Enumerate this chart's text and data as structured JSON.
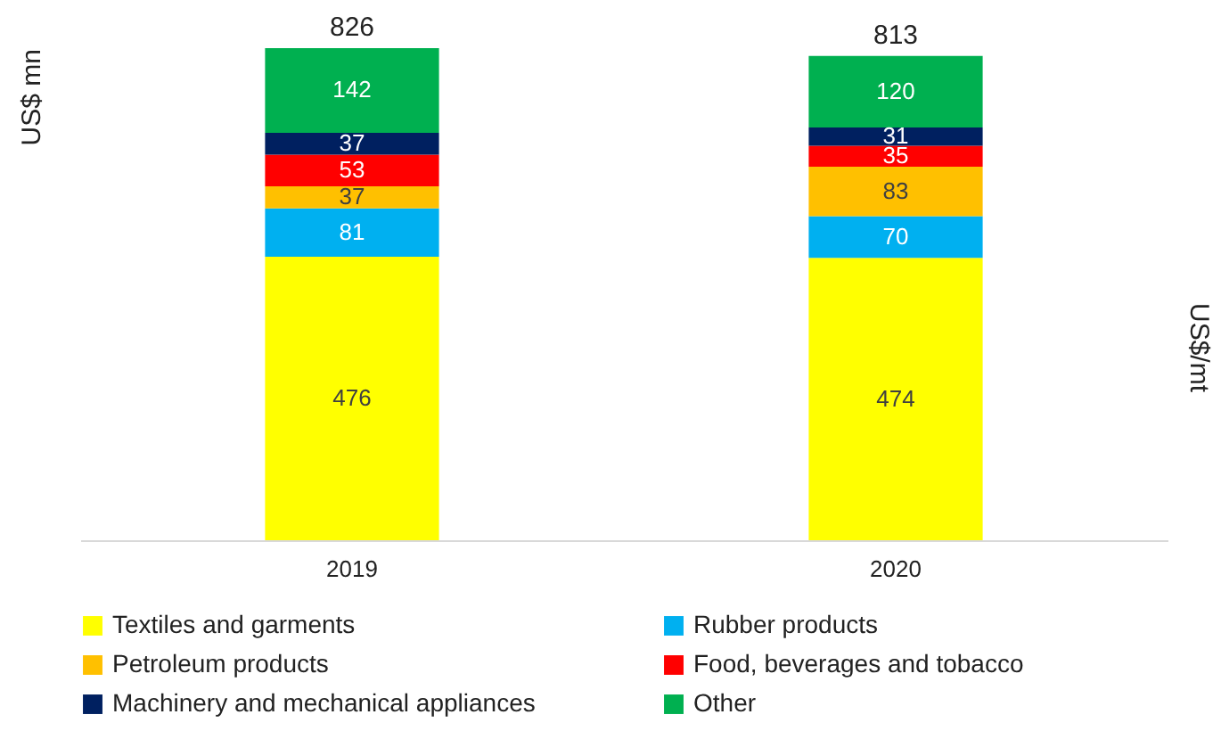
{
  "chart_data": {
    "type": "bar",
    "stacked": true,
    "ylabel": "US$ mn",
    "y2label": "US$/mt",
    "categories": [
      "2019",
      "2020"
    ],
    "series": [
      {
        "name": "Textiles and garments",
        "color": "#ffff00",
        "values": [
          476,
          474
        ]
      },
      {
        "name": "Rubber products",
        "color": "#00b0f0",
        "values": [
          81,
          70
        ]
      },
      {
        "name": "Petroleum products",
        "color": "#ffc000",
        "values": [
          37,
          83
        ]
      },
      {
        "name": "Food, beverages and tobacco",
        "color": "#ff0000",
        "values": [
          53,
          35
        ]
      },
      {
        "name": "Machinery and mechanical appliances",
        "color": "#002060",
        "values": [
          37,
          31
        ]
      },
      {
        "name": "Other",
        "color": "#00b050",
        "values": [
          142,
          120
        ]
      }
    ],
    "data_labels": true,
    "totals": [
      "826",
      "813"
    ],
    "legend": "bottom",
    "grid": false
  }
}
